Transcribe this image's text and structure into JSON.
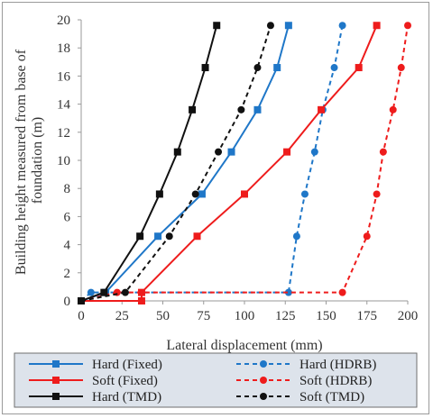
{
  "chart_data": {
    "type": "line",
    "xlabel": "Lateral displacement (mm)",
    "ylabel": [
      "Building height measured from base of",
      "foundation (m)"
    ],
    "xlim": [
      0,
      200
    ],
    "ylim": [
      0,
      20
    ],
    "xticks": [
      0,
      25,
      50,
      75,
      100,
      125,
      150,
      175,
      200
    ],
    "yticks": [
      0,
      2,
      4,
      6,
      8,
      10,
      12,
      14,
      16,
      18,
      20
    ],
    "grid": false,
    "legend_position": "bottom",
    "series": [
      {
        "name": "Hard (Fixed)",
        "color": "#1f77c8",
        "dash": "solid",
        "marker": "square",
        "points": [
          [
            0,
            0
          ],
          [
            15,
            0.6
          ],
          [
            47,
            4.6
          ],
          [
            74,
            7.6
          ],
          [
            92,
            10.6
          ],
          [
            108,
            13.6
          ],
          [
            120,
            16.6
          ],
          [
            127,
            19.6
          ]
        ]
      },
      {
        "name": "Hard (HDRB)",
        "color": "#1f77c8",
        "dash": "dashed",
        "marker": "circle",
        "points": [
          [
            0,
            0
          ],
          [
            6,
            0.6
          ],
          [
            127,
            0.6
          ],
          [
            132,
            4.6
          ],
          [
            137,
            7.6
          ],
          [
            143,
            10.6
          ],
          [
            148,
            13.6
          ],
          [
            155,
            16.6
          ],
          [
            160,
            19.6
          ]
        ]
      },
      {
        "name": "Soft (Fixed)",
        "color": "#ee1c1c",
        "dash": "solid",
        "marker": "square",
        "points": [
          [
            0,
            0
          ],
          [
            37,
            0
          ],
          [
            37,
            0.6
          ],
          [
            71,
            4.6
          ],
          [
            100,
            7.6
          ],
          [
            126,
            10.6
          ],
          [
            147,
            13.6
          ],
          [
            170,
            16.6
          ],
          [
            181,
            19.6
          ]
        ]
      },
      {
        "name": "Soft (HDRB)",
        "color": "#ee1c1c",
        "dash": "dashed",
        "marker": "circle",
        "points": [
          [
            0,
            0
          ],
          [
            22,
            0.6
          ],
          [
            160,
            0.6
          ],
          [
            175,
            4.6
          ],
          [
            181,
            7.6
          ],
          [
            185,
            10.6
          ],
          [
            191,
            13.6
          ],
          [
            196,
            16.6
          ],
          [
            200,
            19.6
          ]
        ]
      },
      {
        "name": "Hard (TMD)",
        "color": "#111111",
        "dash": "solid",
        "marker": "square",
        "points": [
          [
            0,
            0
          ],
          [
            14,
            0.6
          ],
          [
            36,
            4.6
          ],
          [
            48,
            7.6
          ],
          [
            59,
            10.6
          ],
          [
            68,
            13.6
          ],
          [
            76,
            16.6
          ],
          [
            83,
            19.6
          ]
        ]
      },
      {
        "name": "Soft (TMD)",
        "color": "#111111",
        "dash": "dashed",
        "marker": "circle",
        "points": [
          [
            0,
            0
          ],
          [
            27,
            0.6
          ],
          [
            54,
            4.6
          ],
          [
            70,
            7.6
          ],
          [
            84,
            10.6
          ],
          [
            98,
            13.6
          ],
          [
            108,
            16.6
          ],
          [
            116,
            19.6
          ]
        ]
      }
    ]
  }
}
